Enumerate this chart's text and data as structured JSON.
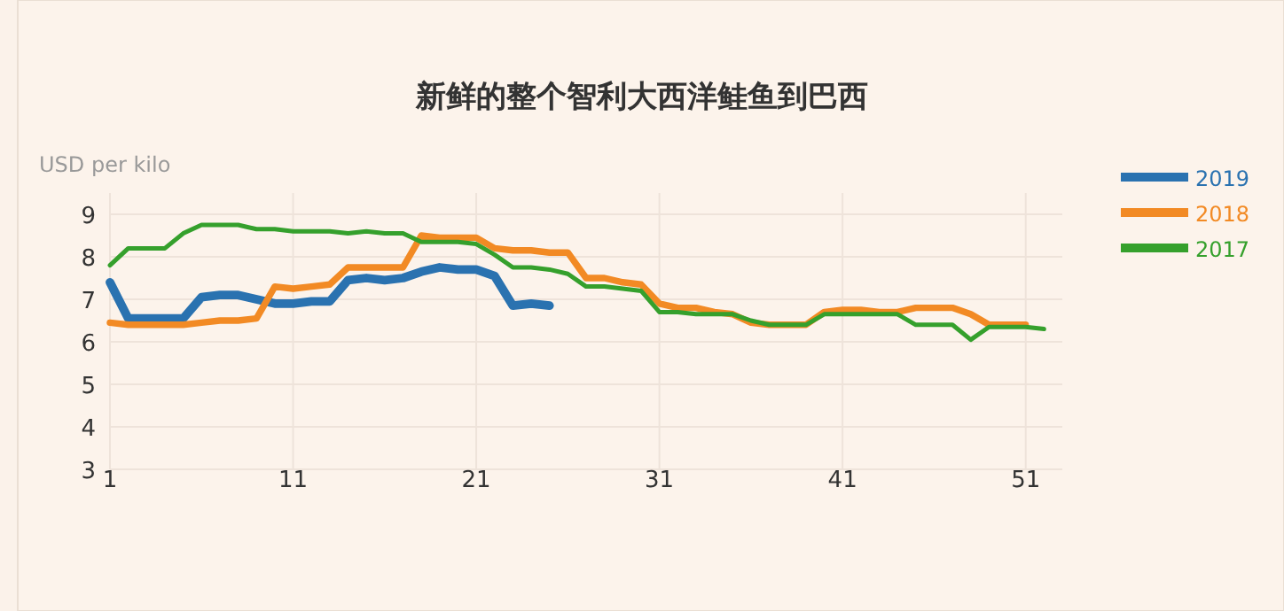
{
  "chart_data": {
    "type": "line",
    "title": "新鲜的整个智利大西洋鲑鱼到巴西",
    "ylabel": "USD per kilo",
    "x": [
      1,
      2,
      3,
      4,
      5,
      6,
      7,
      8,
      9,
      10,
      11,
      12,
      13,
      14,
      15,
      16,
      17,
      18,
      19,
      20,
      21,
      22,
      23,
      24,
      25,
      26,
      27,
      28,
      29,
      30,
      31,
      32,
      33,
      34,
      35,
      36,
      37,
      38,
      39,
      40,
      41,
      42,
      43,
      44,
      45,
      46,
      47,
      48,
      49,
      50,
      51,
      52
    ],
    "series": [
      {
        "name": "2019",
        "color": "#2a72b0",
        "values": [
          7.4,
          6.55,
          6.55,
          6.55,
          6.55,
          7.05,
          7.1,
          7.1,
          7.0,
          6.9,
          6.9,
          6.95,
          6.95,
          7.45,
          7.5,
          7.45,
          7.5,
          7.65,
          7.75,
          7.7,
          7.7,
          7.55,
          6.85,
          6.9,
          6.85,
          null,
          null,
          null,
          null,
          null,
          null,
          null,
          null,
          null,
          null,
          null,
          null,
          null,
          null,
          null,
          null,
          null,
          null,
          null,
          null,
          null,
          null,
          null,
          null,
          null,
          null,
          null
        ]
      },
      {
        "name": "2018",
        "color": "#f28a24",
        "values": [
          6.45,
          6.4,
          6.4,
          6.4,
          6.4,
          6.45,
          6.5,
          6.5,
          6.55,
          7.3,
          7.25,
          7.3,
          7.35,
          7.75,
          7.75,
          7.75,
          7.75,
          8.5,
          8.45,
          8.45,
          8.45,
          8.2,
          8.15,
          8.15,
          8.1,
          8.1,
          7.5,
          7.5,
          7.4,
          7.35,
          6.9,
          6.8,
          6.8,
          6.7,
          6.65,
          6.45,
          6.4,
          6.4,
          6.4,
          6.7,
          6.75,
          6.75,
          6.7,
          6.7,
          6.8,
          6.8,
          6.8,
          6.65,
          6.4,
          6.4,
          6.4,
          null
        ]
      },
      {
        "name": "2017",
        "color": "#35a02c",
        "values": [
          7.8,
          8.2,
          8.2,
          8.2,
          8.55,
          8.75,
          8.75,
          8.75,
          8.65,
          8.65,
          8.6,
          8.6,
          8.6,
          8.55,
          8.6,
          8.55,
          8.55,
          8.35,
          8.35,
          8.35,
          8.3,
          8.05,
          7.75,
          7.75,
          7.7,
          7.6,
          7.3,
          7.3,
          7.25,
          7.2,
          6.7,
          6.7,
          6.65,
          6.65,
          6.65,
          6.5,
          6.4,
          6.4,
          6.4,
          6.65,
          6.65,
          6.65,
          6.65,
          6.65,
          6.4,
          6.4,
          6.4,
          6.05,
          6.35,
          6.35,
          6.35,
          6.3
        ]
      }
    ],
    "xlim": [
      1,
      53
    ],
    "xticks": [
      1,
      11,
      21,
      31,
      41,
      51
    ],
    "ylim": [
      3,
      9.5
    ],
    "yticks": [
      3,
      4,
      5,
      6,
      7,
      8,
      9
    ],
    "grid": true,
    "legend": "top right"
  }
}
